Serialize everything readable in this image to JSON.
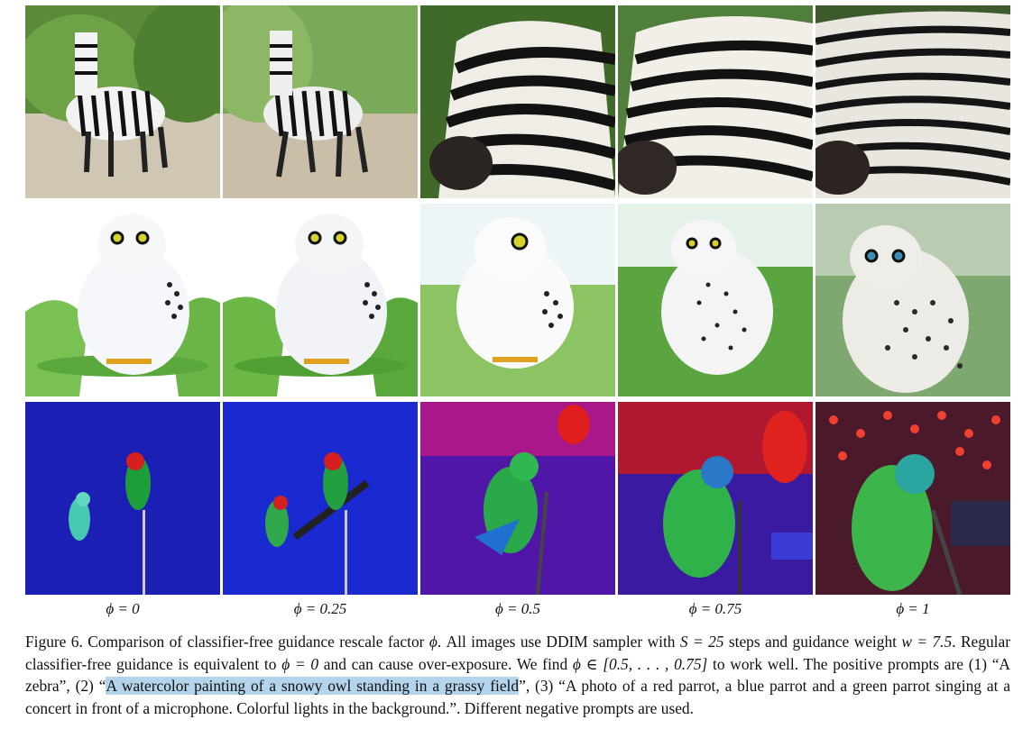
{
  "figure": {
    "rows": [
      {
        "subject": "zebra",
        "alt": "Zebra generations"
      },
      {
        "subject": "snowy owl",
        "alt": "Watercolor snowy owl generations"
      },
      {
        "subject": "parrots",
        "alt": "Parrots singing at concert generations"
      }
    ],
    "column_labels": [
      "ϕ = 0",
      "ϕ = 0.25",
      "ϕ = 0.5",
      "ϕ = 0.75",
      "ϕ = 1"
    ]
  },
  "caption": {
    "part1": "Figure 6. Comparison of classifier-free guidance rescale factor ",
    "phi": "ϕ",
    "part2": ". All images use DDIM sampler with ",
    "S_eq": "S = 25",
    "part3": " steps and guidance weight ",
    "w_eq": "w = 7.5",
    "part4": ". Regular classifier-free guidance is equivalent to ",
    "phi_zero": "ϕ = 0",
    "part5": " and can cause over-exposure. We find ",
    "phi_range": "ϕ ∈ [0.5, . . . , 0.75]",
    "part6": " to work well. The positive prompts are (1) “A zebra”, (2) “",
    "highlight": "A watercolor painting of a snowy owl standing in a grassy field",
    "part7": "”, (3) “A photo of a red parrot, a blue parrot and a green parrot singing at a concert in front of a microphone. Colorful lights in the background.”. Different negative prompts are used."
  }
}
